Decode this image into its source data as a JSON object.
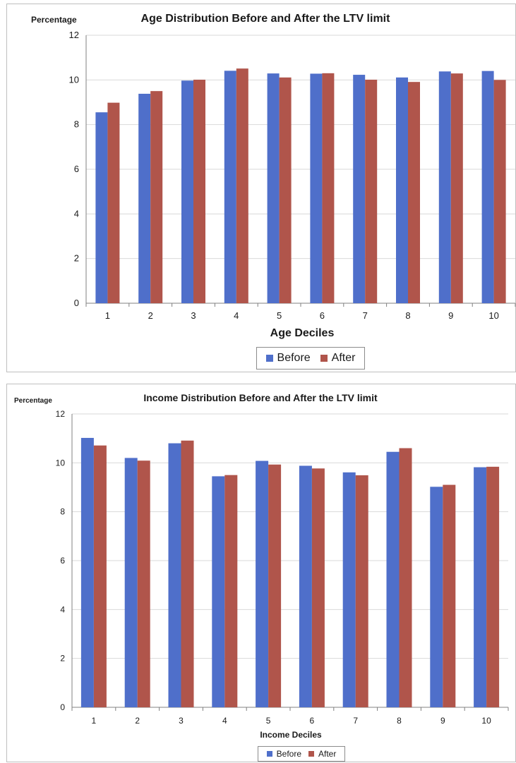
{
  "chart_data": [
    {
      "type": "bar",
      "title": "Age Distribution Before and After the LTV limit",
      "ylabel": "Percentage",
      "xlabel": "Age Deciles",
      "categories": [
        "1",
        "2",
        "3",
        "4",
        "5",
        "6",
        "7",
        "8",
        "9",
        "10"
      ],
      "ylim": [
        0,
        12
      ],
      "yticks": [
        "0",
        "2",
        "4",
        "6",
        "8",
        "10",
        "12"
      ],
      "grid": "horizontal",
      "legend_position": "bottom",
      "series": [
        {
          "name": "Before",
          "color": "#4f6fca",
          "values": [
            8.55,
            9.38,
            9.97,
            10.41,
            10.29,
            10.28,
            10.23,
            10.11,
            10.38,
            10.4
          ]
        },
        {
          "name": "After",
          "color": "#b0554b",
          "values": [
            8.98,
            9.5,
            10.01,
            10.51,
            10.11,
            10.3,
            10.01,
            9.91,
            10.29,
            10.0
          ]
        }
      ]
    },
    {
      "type": "bar",
      "title": "Income Distribution Before and After the LTV limit",
      "ylabel": "Percentage",
      "xlabel": "Income Deciles",
      "categories": [
        "1",
        "2",
        "3",
        "4",
        "5",
        "6",
        "7",
        "8",
        "9",
        "10"
      ],
      "ylim": [
        0,
        12
      ],
      "yticks": [
        "0",
        "2",
        "4",
        "6",
        "8",
        "10",
        "12"
      ],
      "grid": "horizontal",
      "legend_position": "bottom",
      "series": [
        {
          "name": "Before",
          "color": "#4f6fca",
          "values": [
            11.02,
            10.2,
            10.8,
            9.45,
            10.08,
            9.88,
            9.61,
            10.45,
            9.02,
            9.82
          ]
        },
        {
          "name": "After",
          "color": "#b0554b",
          "values": [
            10.71,
            10.09,
            10.91,
            9.5,
            9.93,
            9.77,
            9.49,
            10.6,
            9.1,
            9.84
          ]
        }
      ]
    }
  ]
}
